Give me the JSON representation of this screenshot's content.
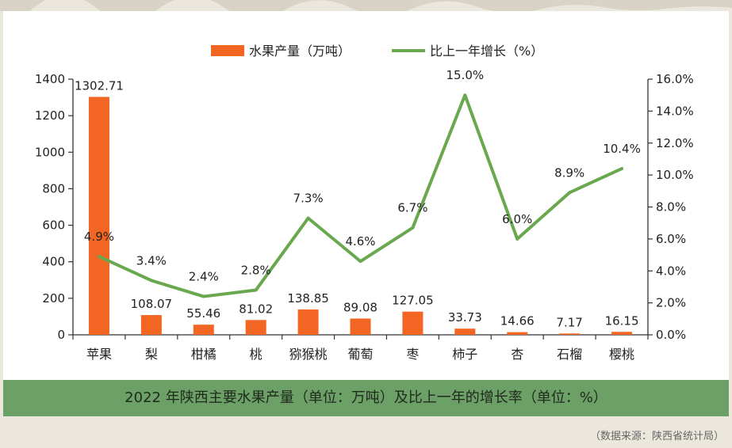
{
  "caption": "2022 年陕西主要水果产量（单位：万吨）及比上一年的增长率（单位：%）",
  "source": "（数据来源：陕西省统计局）",
  "chart_data": {
    "type": "bar",
    "categories": [
      "苹果",
      "梨",
      "柑橘",
      "桃",
      "猕猴桃",
      "葡萄",
      "枣",
      "柿子",
      "杏",
      "石榴",
      "樱桃"
    ],
    "series": [
      {
        "name": "水果产量（万吨）",
        "type": "bar",
        "axis": "left",
        "color": "#f26522",
        "values": [
          1302.71,
          108.07,
          55.46,
          81.02,
          138.85,
          89.08,
          127.05,
          33.73,
          14.66,
          7.17,
          16.15
        ],
        "labels": [
          "1302.71",
          "108.07",
          "55.46",
          "81.02",
          "138.85",
          "89.08",
          "127.05",
          "33.73",
          "14.66",
          "7.17",
          "16.15"
        ]
      },
      {
        "name": "比上一年增长（%）",
        "type": "line",
        "axis": "right",
        "color": "#6aa84f",
        "values": [
          4.9,
          3.4,
          2.4,
          2.8,
          7.3,
          4.6,
          6.7,
          15.0,
          6.0,
          8.9,
          10.4
        ],
        "labels": [
          "4.9%",
          "3.4%",
          "2.4%",
          "2.8%",
          "7.3%",
          "4.6%",
          "6.7%",
          "15.0%",
          "6.0%",
          "8.9%",
          "10.4%"
        ]
      }
    ],
    "y_left": {
      "ylim": [
        0,
        1400
      ],
      "ticks": [
        "0",
        "200",
        "400",
        "600",
        "800",
        "1000",
        "1200",
        "1400"
      ]
    },
    "y_right": {
      "ylim": [
        0,
        16
      ],
      "ticks": [
        "0.0%",
        "2.0%",
        "4.0%",
        "6.0%",
        "8.0%",
        "10.0%",
        "12.0%",
        "14.0%",
        "16.0%"
      ]
    },
    "legend": "top",
    "grid": false
  }
}
